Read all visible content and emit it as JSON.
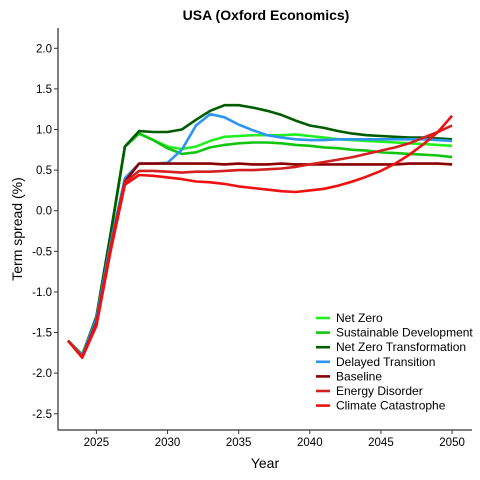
{
  "chart_data": {
    "type": "line",
    "title": "USA (Oxford Economics)",
    "xlabel": "Year",
    "ylabel": "Term spread (%)",
    "xlim": [
      2022.3,
      2051.4
    ],
    "ylim": [
      -2.7,
      2.25
    ],
    "xticks": [
      2025,
      2030,
      2035,
      2040,
      2045,
      2050
    ],
    "yticks": [
      -2.5,
      -2.0,
      -1.5,
      -1.0,
      -0.5,
      0.0,
      0.5,
      1.0,
      1.5,
      2.0
    ],
    "ytick_labels": [
      "-2.5",
      "-2.0",
      "-1.5",
      "-1.0",
      "-0.5",
      "0.0",
      "0.5",
      "1.0",
      "1.5",
      "2.0"
    ],
    "grid": false,
    "legend_position": "bottom-right",
    "x": [
      2023,
      2024,
      2025,
      2026,
      2027,
      2028,
      2029,
      2030,
      2031,
      2032,
      2033,
      2034,
      2035,
      2036,
      2037,
      2038,
      2039,
      2040,
      2041,
      2042,
      2043,
      2044,
      2045,
      2046,
      2047,
      2048,
      2049,
      2050
    ],
    "series": [
      {
        "name": "Net Zero",
        "color": "#22ee22",
        "values": [
          -1.6,
          -1.77,
          -1.32,
          -0.3,
          0.79,
          0.95,
          0.87,
          0.79,
          0.76,
          0.79,
          0.86,
          0.91,
          0.92,
          0.93,
          0.93,
          0.93,
          0.94,
          0.92,
          0.9,
          0.88,
          0.87,
          0.86,
          0.85,
          0.84,
          0.83,
          0.82,
          0.81,
          0.8
        ]
      },
      {
        "name": "Sustainable Development",
        "color": "#11c511",
        "values": [
          -1.6,
          -1.77,
          -1.32,
          -0.3,
          0.79,
          0.95,
          0.87,
          0.77,
          0.7,
          0.72,
          0.78,
          0.81,
          0.83,
          0.84,
          0.84,
          0.83,
          0.81,
          0.8,
          0.78,
          0.77,
          0.75,
          0.74,
          0.72,
          0.71,
          0.7,
          0.69,
          0.68,
          0.66
        ]
      },
      {
        "name": "Net Zero Transformation",
        "color": "#005c00",
        "values": [
          -1.6,
          -1.78,
          -1.3,
          -0.28,
          0.79,
          0.98,
          0.97,
          0.97,
          1.0,
          1.12,
          1.23,
          1.3,
          1.3,
          1.27,
          1.23,
          1.18,
          1.11,
          1.05,
          1.02,
          0.98,
          0.95,
          0.93,
          0.92,
          0.91,
          0.9,
          0.9,
          0.89,
          0.88
        ]
      },
      {
        "name": "Delayed Transition",
        "color": "#2b95f0",
        "values": [
          -1.6,
          -1.78,
          -1.33,
          -0.4,
          0.4,
          0.58,
          0.58,
          0.59,
          0.75,
          1.05,
          1.19,
          1.15,
          1.06,
          0.99,
          0.93,
          0.9,
          0.88,
          0.87,
          0.87,
          0.88,
          0.88,
          0.88,
          0.88,
          0.88,
          0.88,
          0.88,
          0.87,
          0.86
        ]
      },
      {
        "name": "Baseline",
        "color": "#8b0000",
        "values": [
          -1.6,
          -1.8,
          -1.38,
          -0.45,
          0.36,
          0.58,
          0.58,
          0.58,
          0.58,
          0.58,
          0.58,
          0.57,
          0.58,
          0.57,
          0.57,
          0.58,
          0.57,
          0.57,
          0.57,
          0.57,
          0.57,
          0.57,
          0.57,
          0.57,
          0.58,
          0.58,
          0.58,
          0.57
        ]
      },
      {
        "name": "Energy Disorder",
        "color": "#d42020",
        "values": [
          -1.6,
          -1.8,
          -1.4,
          -0.45,
          0.35,
          0.49,
          0.49,
          0.48,
          0.47,
          0.48,
          0.48,
          0.49,
          0.5,
          0.5,
          0.51,
          0.52,
          0.54,
          0.57,
          0.6,
          0.63,
          0.66,
          0.7,
          0.74,
          0.78,
          0.83,
          0.9,
          0.97,
          1.05
        ]
      },
      {
        "name": "Climate Catastrophe",
        "color": "#ee1111",
        "values": [
          -1.6,
          -1.81,
          -1.42,
          -0.5,
          0.32,
          0.44,
          0.43,
          0.41,
          0.39,
          0.36,
          0.35,
          0.33,
          0.3,
          0.28,
          0.26,
          0.24,
          0.23,
          0.25,
          0.27,
          0.31,
          0.36,
          0.42,
          0.49,
          0.58,
          0.69,
          0.82,
          0.97,
          1.17
        ]
      }
    ]
  }
}
